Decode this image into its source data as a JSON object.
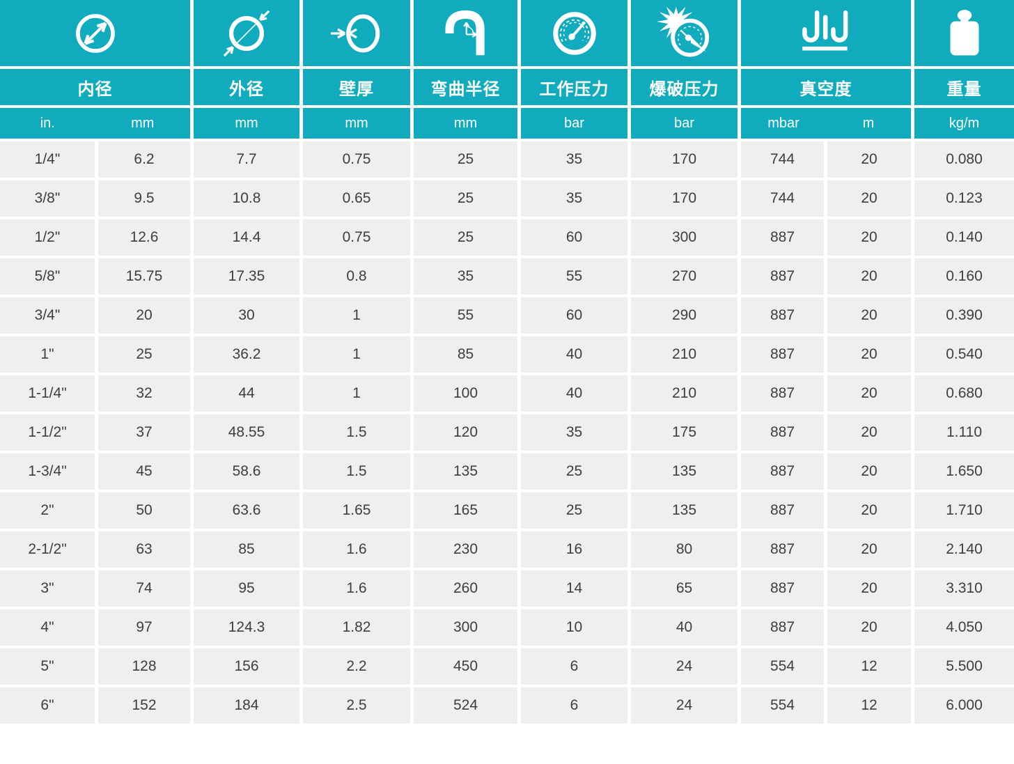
{
  "colors": {
    "accent": "#10acbe",
    "row_background": "#efefef",
    "data_text": "#3e3e3e",
    "header_text": "#ffffff"
  },
  "chart_data": {
    "type": "table",
    "title": "",
    "columns": [
      {
        "icon": "inner-diameter-icon",
        "label": "内径",
        "units": [
          "in.",
          "mm"
        ]
      },
      {
        "icon": "outer-diameter-icon",
        "label": "外径",
        "units": [
          "mm"
        ]
      },
      {
        "icon": "wall-thickness-icon",
        "label": "壁厚",
        "units": [
          "mm"
        ]
      },
      {
        "icon": "bend-radius-icon",
        "label": "弯曲半径",
        "units": [
          "mm"
        ]
      },
      {
        "icon": "working-pressure-icon",
        "label": "工作压力",
        "units": [
          "bar"
        ]
      },
      {
        "icon": "burst-pressure-icon",
        "label": "爆破压力",
        "units": [
          "bar"
        ]
      },
      {
        "icon": "vacuum-icon",
        "label": "真空度",
        "units": [
          "mbar",
          "m"
        ]
      },
      {
        "icon": "weight-icon",
        "label": "重量",
        "units": [
          "kg/m"
        ]
      }
    ],
    "rows": [
      [
        "1/4\"",
        "6.2",
        "7.7",
        "0.75",
        "25",
        "35",
        "170",
        "744",
        "20",
        "0.080"
      ],
      [
        "3/8\"",
        "9.5",
        "10.8",
        "0.65",
        "25",
        "35",
        "170",
        "744",
        "20",
        "0.123"
      ],
      [
        "1/2\"",
        "12.6",
        "14.4",
        "0.75",
        "25",
        "60",
        "300",
        "887",
        "20",
        "0.140"
      ],
      [
        "5/8\"",
        "15.75",
        "17.35",
        "0.8",
        "35",
        "55",
        "270",
        "887",
        "20",
        "0.160"
      ],
      [
        "3/4\"",
        "20",
        "30",
        "1",
        "55",
        "60",
        "290",
        "887",
        "20",
        "0.390"
      ],
      [
        "1\"",
        "25",
        "36.2",
        "1",
        "85",
        "40",
        "210",
        "887",
        "20",
        "0.540"
      ],
      [
        "1-1/4\"",
        "32",
        "44",
        "1",
        "100",
        "40",
        "210",
        "887",
        "20",
        "0.680"
      ],
      [
        "1-1/2\"",
        "37",
        "48.55",
        "1.5",
        "120",
        "35",
        "175",
        "887",
        "20",
        "1.110"
      ],
      [
        "1-3/4\"",
        "45",
        "58.6",
        "1.5",
        "135",
        "25",
        "135",
        "887",
        "20",
        "1.650"
      ],
      [
        "2\"",
        "50",
        "63.6",
        "1.65",
        "165",
        "25",
        "135",
        "887",
        "20",
        "1.710"
      ],
      [
        "2-1/2\"",
        "63",
        "85",
        "1.6",
        "230",
        "16",
        "80",
        "887",
        "20",
        "2.140"
      ],
      [
        "3\"",
        "74",
        "95",
        "1.6",
        "260",
        "14",
        "65",
        "887",
        "20",
        "3.310"
      ],
      [
        "4\"",
        "97",
        "124.3",
        "1.82",
        "300",
        "10",
        "40",
        "887",
        "20",
        "4.050"
      ],
      [
        "5\"",
        "128",
        "156",
        "2.2",
        "450",
        "6",
        "24",
        "554",
        "12",
        "5.500"
      ],
      [
        "6\"",
        "152",
        "184",
        "2.5",
        "524",
        "6",
        "24",
        "554",
        "12",
        "6.000"
      ]
    ]
  }
}
